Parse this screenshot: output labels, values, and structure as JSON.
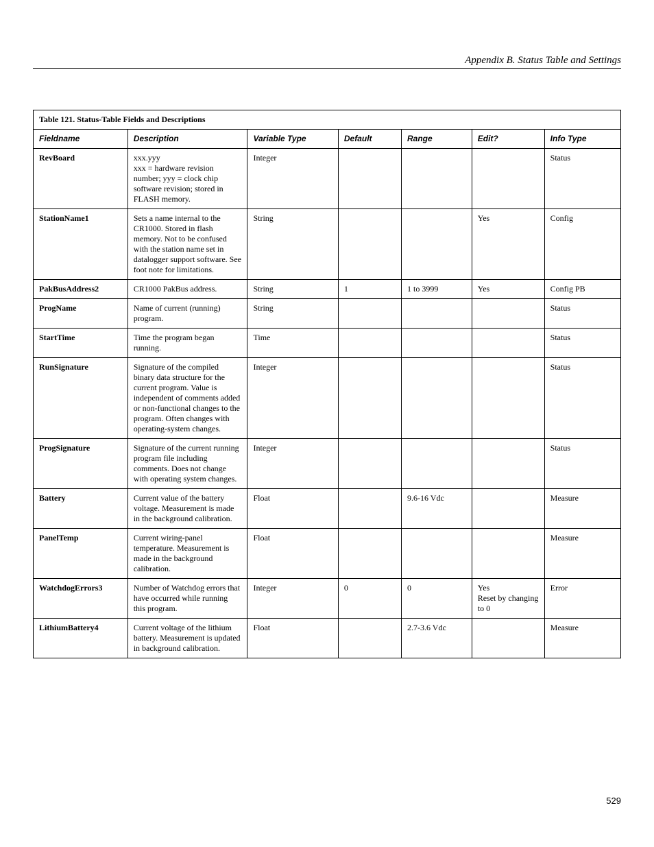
{
  "header": {
    "running": "Appendix B.  Status Table and Settings"
  },
  "table": {
    "title": "Table 121. Status-Table Fields and Descriptions",
    "columns": [
      "Fieldname",
      "Description",
      "Variable Type",
      "Default",
      "Range",
      "Edit?",
      "Info Type"
    ],
    "rows": [
      {
        "field": "RevBoard",
        "desc": "xxx.yyy\nxxx = hardware revision number; yyy = clock chip software revision; stored in FLASH memory.",
        "type": "Integer",
        "default": "",
        "range": "",
        "edit": "",
        "info": "Status"
      },
      {
        "field": "StationName1",
        "desc": "Sets a name internal to the CR1000.  Stored in flash memory.  Not to be confused with the station name set in datalogger support software.  See foot note for limitations.",
        "type": "String",
        "default": "",
        "range": "",
        "edit": "Yes",
        "info": "Config"
      },
      {
        "field": "PakBusAddress2",
        "desc": "CR1000 PakBus address.",
        "type": "String",
        "default": "1",
        "range": "1 to 3999",
        "edit": "Yes",
        "info": "Config PB"
      },
      {
        "field": "ProgName",
        "desc": "Name of current (running) program.",
        "type": "String",
        "default": "",
        "range": "",
        "edit": "",
        "info": "Status"
      },
      {
        "field": "StartTime",
        "desc": "Time the program began running.",
        "type": "Time",
        "default": "",
        "range": "",
        "edit": "",
        "info": "Status"
      },
      {
        "field": "RunSignature",
        "desc": "Signature of the compiled binary data structure for the current program. Value is independent of comments added or non-functional changes to the program. Often changes with operating-system changes.",
        "type": "Integer",
        "default": "",
        "range": "",
        "edit": "",
        "info": "Status"
      },
      {
        "field": "ProgSignature",
        "desc": "Signature of the current running program file including comments. Does not change with operating system changes.",
        "type": "Integer",
        "default": "",
        "range": "",
        "edit": "",
        "info": "Status"
      },
      {
        "field": "Battery",
        "desc": "Current value of the battery voltage. Measurement is made in the background calibration.",
        "type": "Float",
        "default": "",
        "range": "9.6-16 Vdc",
        "edit": "",
        "info": "Measure"
      },
      {
        "field": "PanelTemp",
        "desc": "Current wiring-panel temperature. Measurement is made in the background calibration.",
        "type": "Float",
        "default": "",
        "range": "",
        "edit": "",
        "info": "Measure"
      },
      {
        "field": "WatchdogErrors3",
        "desc": "Number of Watchdog errors that have occurred while running this program.",
        "type": "Integer",
        "default": "0",
        "range": "0",
        "edit": "Yes\nReset by changing to 0",
        "info": "Error"
      },
      {
        "field": "LithiumBattery4",
        "desc": "Current voltage of the lithium battery. Measurement is updated in background calibration.",
        "type": "Float",
        "default": "",
        "range": "2.7-3.6 Vdc",
        "edit": "",
        "info": "Measure"
      }
    ]
  },
  "footer": {
    "page": "529"
  }
}
